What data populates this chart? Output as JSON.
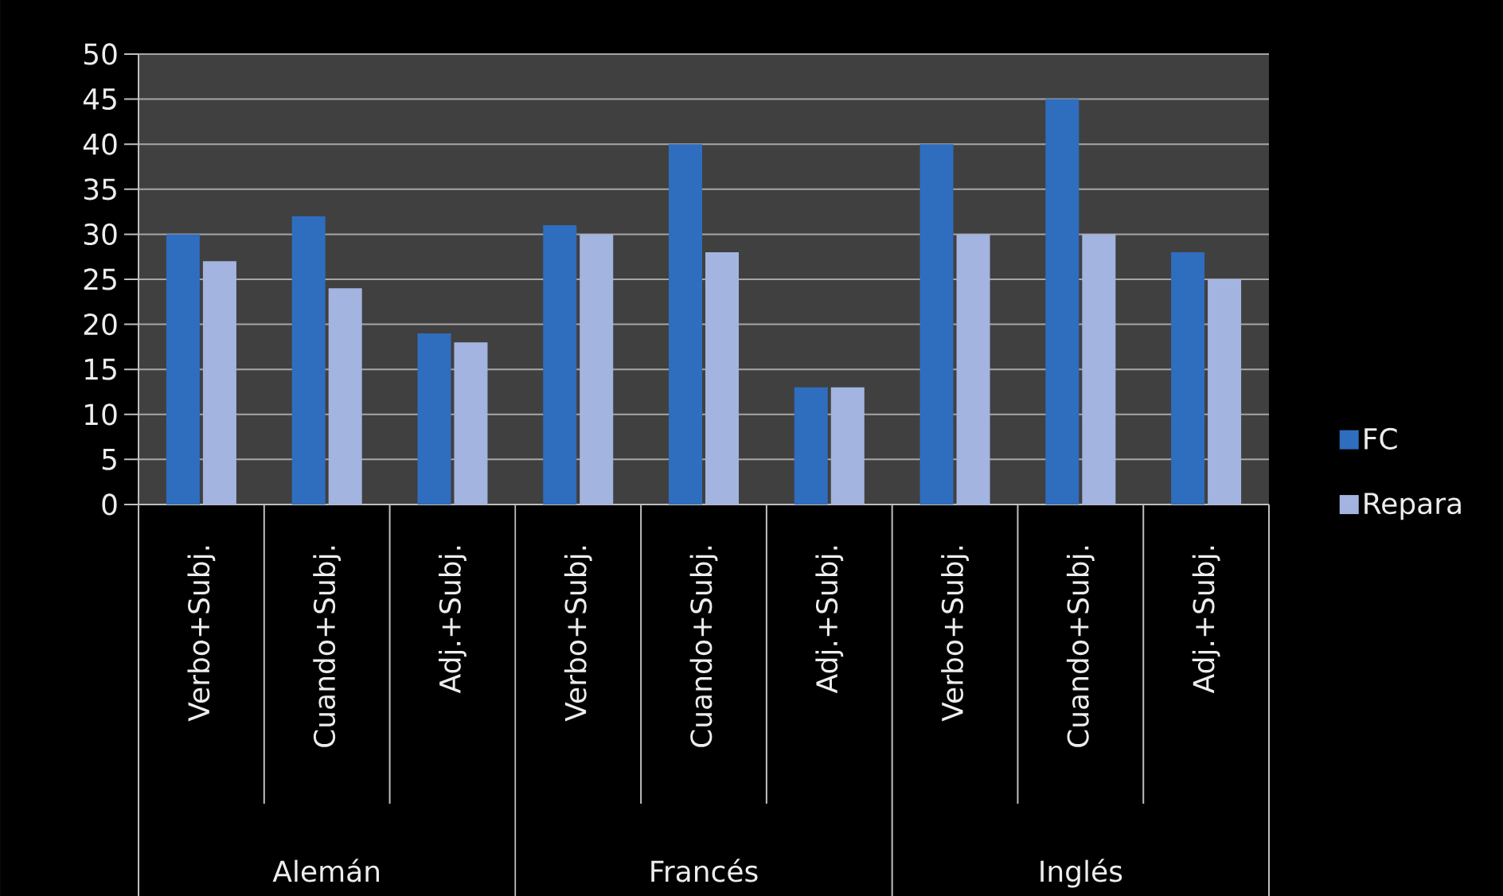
{
  "chart_data": {
    "type": "bar",
    "categories": [
      "Verbo+Subj.",
      "Cuando+Subj.",
      "Adj.+Subj.",
      "Verbo+Subj.",
      "Cuando+Subj.",
      "Adj.+Subj.",
      "Verbo+Subj.",
      "Cuando+Subj.",
      "Adj.+Subj."
    ],
    "series": [
      {
        "name": "FC",
        "color": "#2f6dbf",
        "values": [
          30,
          32,
          19,
          31,
          40,
          13,
          40,
          45,
          28
        ]
      },
      {
        "name": "Repara",
        "color": "#a3b4e0",
        "values": [
          27,
          24,
          18,
          30,
          28,
          13,
          30,
          30,
          25
        ]
      }
    ],
    "ylim": [
      0,
      50
    ],
    "yticks": [
      0,
      5,
      10,
      15,
      20,
      25,
      30,
      35,
      40,
      45,
      50
    ],
    "grid": "y",
    "legend": "right",
    "annotations": [
      "Alemán",
      "Francés",
      "Inglés"
    ]
  }
}
